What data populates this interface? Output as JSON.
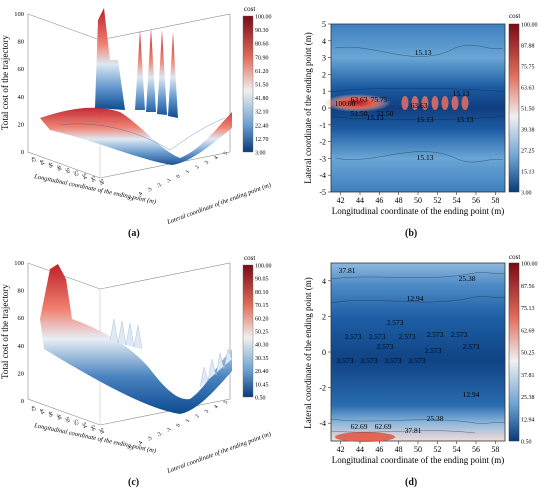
{
  "captions": {
    "a": "(a)",
    "b": "(b)",
    "c": "(c)",
    "d": "(d)"
  },
  "colors": {
    "red": "#b2182b",
    "white": "#f7f7f7",
    "blue": "#2166ac",
    "darkblue": "#0a3a7a"
  },
  "chart_data": [
    {
      "panel": "a",
      "type": "surface3d",
      "zlabel": "Total cost of the trajectory",
      "xlabel": "Longitudinal coordinate of the ending point (m)",
      "ylabel": "Lateral coordinate of the ending point (m)",
      "x_ticks": [
        "42",
        "44",
        "46",
        "48",
        "50",
        "52",
        "54",
        "56",
        "58"
      ],
      "y_ticks": [
        "-5",
        "-4",
        "-3",
        "-2",
        "-1",
        "0",
        "1",
        "2",
        "3",
        "4",
        "5"
      ],
      "z_ticks": [
        "0",
        "20",
        "40",
        "60",
        "80",
        "100"
      ],
      "zlim": [
        0,
        100
      ],
      "colorbar": {
        "title": "cost",
        "ticks": [
          "100.00",
          "90.30",
          "80.60",
          "70.90",
          "61.20",
          "51.50",
          "41.80",
          "32.10",
          "22.40",
          "12.70",
          "3.00"
        ]
      }
    },
    {
      "panel": "b",
      "type": "contour",
      "xlabel": "Longitudinal coordinate of the ending point (m)",
      "ylabel": "Lateral coordinate of the ending point (m)",
      "x_ticks": [
        "42",
        "44",
        "46",
        "48",
        "50",
        "52",
        "54",
        "56",
        "58"
      ],
      "y_ticks": [
        "5",
        "4",
        "3",
        "2",
        "1",
        "0",
        "-1",
        "-2",
        "-3",
        "-4",
        "-5"
      ],
      "xlim": [
        41,
        59
      ],
      "ylim": [
        -5,
        5
      ],
      "contour_labels": [
        "15.13",
        "15.13",
        "15.13",
        "63.63",
        "75.75",
        "63.63",
        "51.50",
        "100.00",
        "51.50",
        "15.13",
        "15.13",
        "15.13"
      ],
      "colorbar": {
        "title": "cost",
        "ticks": [
          "100.00",
          "87.88",
          "75.75",
          "63.63",
          "51.50",
          "39.38",
          "27.25",
          "15.13",
          "3.00"
        ]
      }
    },
    {
      "panel": "c",
      "type": "surface3d",
      "zlabel": "Total cost of the trajectory",
      "xlabel": "Longitudinal coordinate of the ending point (m)",
      "ylabel": "Lateral coordinate of the ending point (m)",
      "x_ticks": [
        "42",
        "44",
        "46",
        "48",
        "50",
        "52",
        "54",
        "56",
        "58"
      ],
      "y_ticks": [
        "-5",
        "-4",
        "-3",
        "-2",
        "-1",
        "0",
        "1",
        "2",
        "3",
        "4",
        "5"
      ],
      "z_ticks": [
        "0",
        "20",
        "40",
        "60",
        "80",
        "100"
      ],
      "zlim": [
        0,
        100
      ],
      "colorbar": {
        "title": "cost",
        "ticks": [
          "100.00",
          "90.05",
          "80.10",
          "70.15",
          "60.20",
          "50.25",
          "40.30",
          "30.35",
          "20.40",
          "10.45",
          "0.50"
        ]
      }
    },
    {
      "panel": "d",
      "type": "contour",
      "xlabel": "Longitudinal coordinate of the ending point (m)",
      "ylabel": "Lateral coordinate of the ending point (m)",
      "x_ticks": [
        "42",
        "44",
        "46",
        "48",
        "50",
        "52",
        "54",
        "56",
        "58"
      ],
      "y_ticks": [
        "4",
        "2",
        "0",
        "-2",
        "-4"
      ],
      "xlim": [
        41,
        59
      ],
      "ylim": [
        -5,
        5
      ],
      "contour_labels": [
        "37.81",
        "25.38",
        "12.94",
        "2.573",
        "2.573",
        "2.573",
        "2.573",
        "2.573",
        "2.573",
        "2.573",
        "2.573",
        "2.573",
        "2.573",
        "2.573",
        "2.573",
        "2.573",
        "12.94",
        "25.38",
        "62.69",
        "62.69",
        "37.81"
      ],
      "colorbar": {
        "title": "cost",
        "ticks": [
          "100.00",
          "87.56",
          "75.13",
          "62.69",
          "50.25",
          "37.81",
          "25.38",
          "12.94",
          "0.50"
        ]
      }
    }
  ]
}
